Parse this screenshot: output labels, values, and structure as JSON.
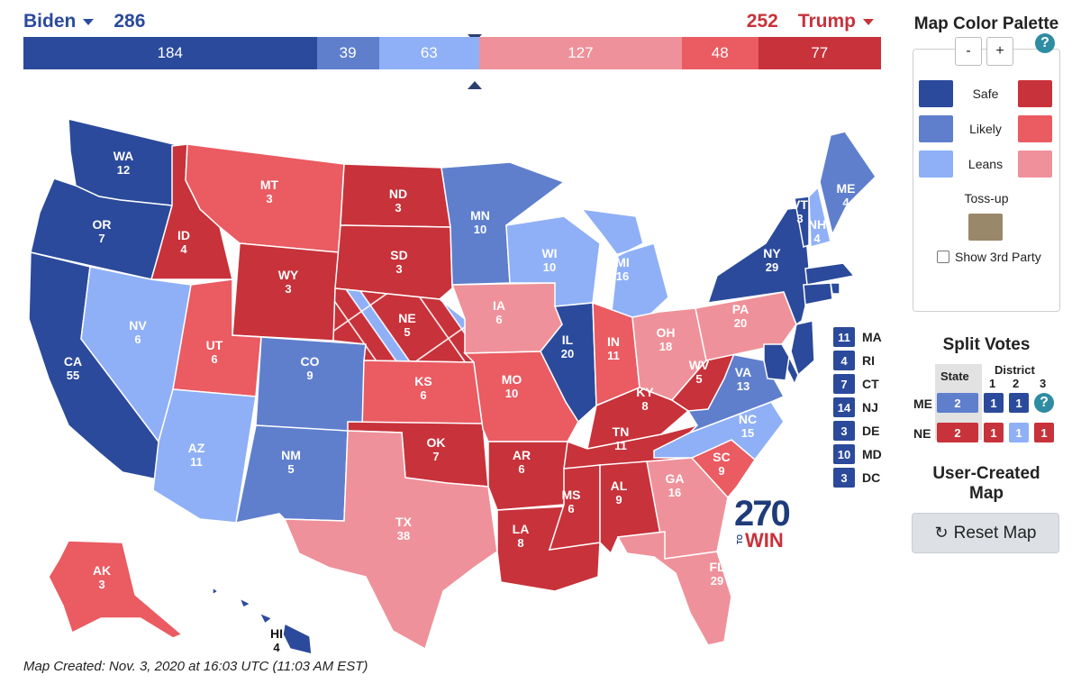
{
  "candidates": {
    "dem": {
      "name": "Biden",
      "total": "286"
    },
    "rep": {
      "name": "Trump",
      "total": "252"
    }
  },
  "ev_bar": [
    {
      "label": "184",
      "value": 184,
      "color": "#2b4a9b"
    },
    {
      "label": "39",
      "value": 39,
      "color": "#5f7fcd"
    },
    {
      "label": "63",
      "value": 63,
      "color": "#8fb0f7"
    },
    {
      "label": "127",
      "value": 127,
      "color": "#ef919a"
    },
    {
      "label": "48",
      "value": 48,
      "color": "#ea5b62"
    },
    {
      "label": "77",
      "value": 77,
      "color": "#c8323a"
    }
  ],
  "colors": {
    "dem_safe": "#2b4a9b",
    "dem_likely": "#5f7fcd",
    "dem_leans": "#8fb0f7",
    "rep_safe": "#c8323a",
    "rep_likely": "#ea5b62",
    "rep_leans": "#ef919a",
    "tossup": "#9a886a"
  },
  "states": {
    "WA": {
      "ev": "12",
      "rating": "dem_safe"
    },
    "OR": {
      "ev": "7",
      "rating": "dem_safe"
    },
    "CA": {
      "ev": "55",
      "rating": "dem_safe"
    },
    "NV": {
      "ev": "6",
      "rating": "dem_leans"
    },
    "ID": {
      "ev": "4",
      "rating": "rep_safe"
    },
    "MT": {
      "ev": "3",
      "rating": "rep_likely"
    },
    "WY": {
      "ev": "3",
      "rating": "rep_safe"
    },
    "UT": {
      "ev": "6",
      "rating": "rep_likely"
    },
    "AZ": {
      "ev": "11",
      "rating": "dem_leans"
    },
    "CO": {
      "ev": "9",
      "rating": "dem_likely"
    },
    "NM": {
      "ev": "5",
      "rating": "dem_likely"
    },
    "ND": {
      "ev": "3",
      "rating": "rep_safe"
    },
    "SD": {
      "ev": "3",
      "rating": "rep_safe"
    },
    "NE": {
      "ev": "5",
      "rating": "rep_safe"
    },
    "KS": {
      "ev": "6",
      "rating": "rep_likely"
    },
    "OK": {
      "ev": "7",
      "rating": "rep_safe"
    },
    "TX": {
      "ev": "38",
      "rating": "rep_leans"
    },
    "MN": {
      "ev": "10",
      "rating": "dem_likely"
    },
    "IA": {
      "ev": "6",
      "rating": "rep_leans"
    },
    "MO": {
      "ev": "10",
      "rating": "rep_likely"
    },
    "AR": {
      "ev": "6",
      "rating": "rep_safe"
    },
    "LA": {
      "ev": "8",
      "rating": "rep_safe"
    },
    "WI": {
      "ev": "10",
      "rating": "dem_leans"
    },
    "IL": {
      "ev": "20",
      "rating": "dem_safe"
    },
    "MI": {
      "ev": "16",
      "rating": "dem_leans"
    },
    "IN": {
      "ev": "11",
      "rating": "rep_likely"
    },
    "OH": {
      "ev": "18",
      "rating": "rep_leans"
    },
    "KY": {
      "ev": "8",
      "rating": "rep_safe"
    },
    "TN": {
      "ev": "11",
      "rating": "rep_safe"
    },
    "MS": {
      "ev": "6",
      "rating": "rep_safe"
    },
    "AL": {
      "ev": "9",
      "rating": "rep_safe"
    },
    "GA": {
      "ev": "16",
      "rating": "rep_leans"
    },
    "FL": {
      "ev": "29",
      "rating": "rep_leans"
    },
    "SC": {
      "ev": "9",
      "rating": "rep_likely"
    },
    "NC": {
      "ev": "15",
      "rating": "dem_leans"
    },
    "VA": {
      "ev": "13",
      "rating": "dem_likely"
    },
    "WV": {
      "ev": "5",
      "rating": "rep_safe"
    },
    "PA": {
      "ev": "20",
      "rating": "rep_leans"
    },
    "NY": {
      "ev": "29",
      "rating": "dem_safe"
    },
    "VT": {
      "ev": "3",
      "rating": "dem_safe"
    },
    "NH": {
      "ev": "4",
      "rating": "dem_leans"
    },
    "ME": {
      "ev": "4",
      "rating": "dem_likely"
    },
    "AK": {
      "ev": "3",
      "rating": "rep_likely"
    },
    "HI": {
      "ev": "4",
      "rating": "dem_safe"
    }
  },
  "small_states": [
    {
      "abbr": "MA",
      "ev": "11"
    },
    {
      "abbr": "RI",
      "ev": "4"
    },
    {
      "abbr": "CT",
      "ev": "7"
    },
    {
      "abbr": "NJ",
      "ev": "14"
    },
    {
      "abbr": "DE",
      "ev": "3"
    },
    {
      "abbr": "MD",
      "ev": "10"
    },
    {
      "abbr": "DC",
      "ev": "3"
    }
  ],
  "palette": {
    "title": "Map Color Palette",
    "zoom_out": "-",
    "zoom_in": "+",
    "help": "?",
    "safe": "Safe",
    "likely": "Likely",
    "leans": "Leans",
    "tossup": "Toss-up",
    "show_third": "Show 3rd Party"
  },
  "split": {
    "title": "Split Votes",
    "state_header": "State",
    "district_header": "District",
    "district_numbers": [
      "1",
      "2",
      "3"
    ],
    "help": "?",
    "me": {
      "label": "ME",
      "state": "2",
      "districts": [
        "1",
        "1"
      ]
    },
    "ne": {
      "label": "NE",
      "state": "2",
      "districts": [
        "1",
        "1",
        "1"
      ]
    }
  },
  "user_created": {
    "line1": "User-Created",
    "line2": "Map"
  },
  "reset_label": "Reset Map",
  "logo": {
    "number": "270",
    "to": "TO",
    "win": "WIN"
  },
  "credit": "Map Created: Nov. 3, 2020 at 16:03 UTC (11:03 AM EST)"
}
